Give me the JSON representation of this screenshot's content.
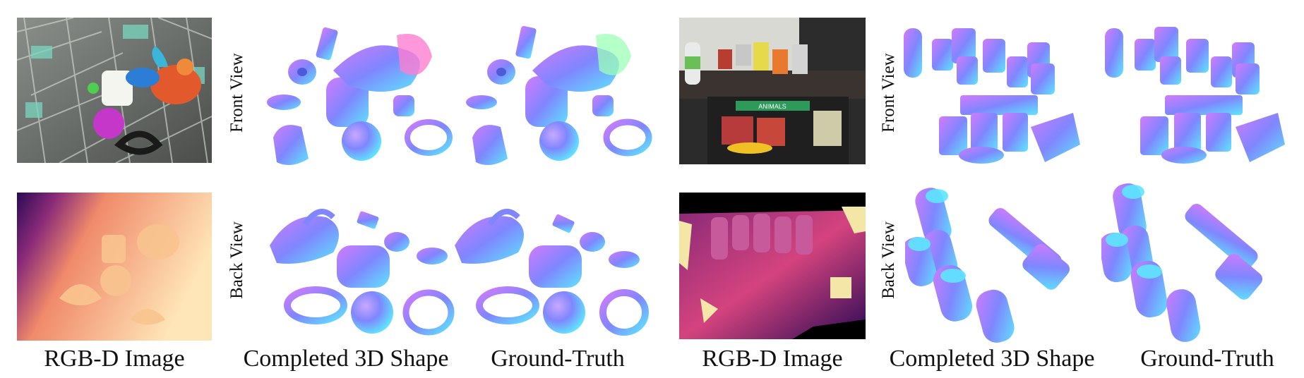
{
  "captions": {
    "left_rgbd": "RGB-D Image",
    "left_completed": "Completed 3D Shape",
    "left_gt": "Ground-Truth",
    "right_rgbd": "RGB-D Image",
    "right_completed": "Completed 3D Shape",
    "right_gt": "Ground-Truth"
  },
  "view_labels": {
    "front_left": "Front View",
    "back_left": "Back View",
    "front_right": "Front View",
    "back_right": "Back View"
  },
  "rgb_scene_right": {
    "box_label": "ANIMALS"
  },
  "colors": {
    "normal_a": "#7f86ff",
    "normal_b": "#d27bff",
    "normal_c": "#5ee6ff",
    "normal_d": "#9cffb7",
    "normal_e": "#ff7dd2",
    "depth_dark": "#2a0a55",
    "depth_mid": "#d4437e",
    "depth_light": "#ffe6b8"
  }
}
